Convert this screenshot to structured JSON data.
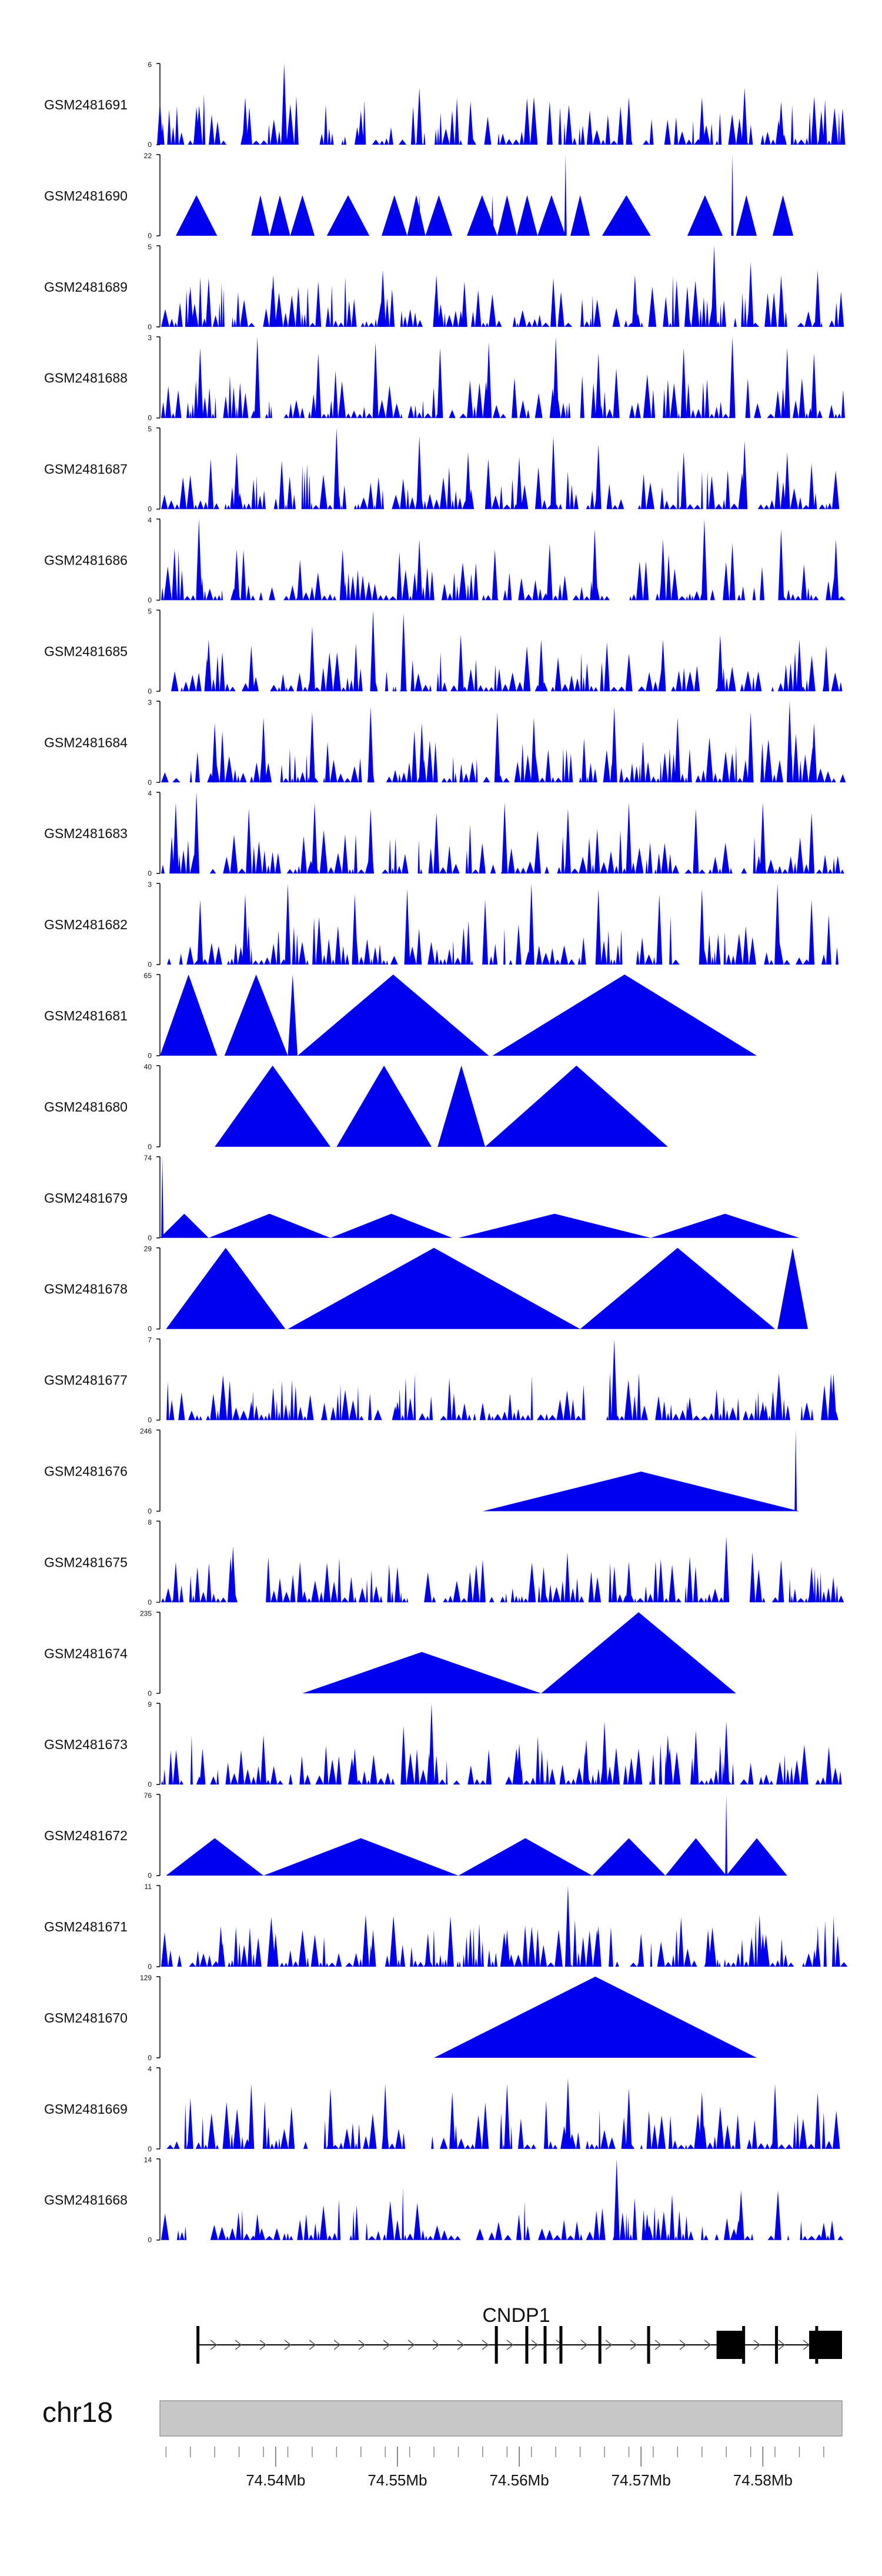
{
  "figure": {
    "chromosome": "chr18",
    "gene": "CNDP1",
    "colors": {
      "signal": "#0000ee",
      "gene": "#000000",
      "ideogram": "#c8c8c8",
      "axis": "#000000",
      "label": "#111111"
    }
  },
  "chart_data": {
    "type": "area",
    "title": "",
    "xlabel": "",
    "ylabel": "",
    "genome_range_mb": [
      74.5305,
      74.5865
    ],
    "x_ticks": [
      {
        "value": 74.54,
        "label": "74.54Mb"
      },
      {
        "value": 74.55,
        "label": "74.55Mb"
      },
      {
        "value": 74.56,
        "label": "74.56Mb"
      },
      {
        "value": 74.57,
        "label": "74.57Mb"
      },
      {
        "value": 74.58,
        "label": "74.58Mb"
      }
    ],
    "tracks": [
      {
        "name": "GSM2481691",
        "ymax": 6,
        "peaks": [
          [
            74.5305,
            3.2
          ],
          [
            74.5335,
            2.8
          ],
          [
            74.5375,
            3.5
          ],
          [
            74.5407,
            6
          ],
          [
            74.547,
            2.5
          ],
          [
            74.5518,
            4.2
          ],
          [
            74.556,
            3.2
          ],
          [
            74.5625,
            3.2
          ],
          [
            74.569,
            3.5
          ],
          [
            74.575,
            3.5
          ],
          [
            74.5785,
            4.2
          ],
          [
            74.5815,
            3.2
          ],
          [
            74.5848,
            2.5
          ]
        ]
      },
      {
        "name": "GSM2481690",
        "ymax": 22,
        "segments": [
          [
            74.5318,
            74.5352,
            11
          ],
          [
            74.538,
            74.5395,
            11
          ],
          [
            74.5395,
            74.5412,
            11
          ],
          [
            74.5412,
            74.5432,
            11
          ],
          [
            74.5442,
            74.5477,
            11
          ],
          [
            74.5487,
            74.5508,
            11
          ],
          [
            74.5508,
            74.5523,
            11
          ],
          [
            74.5523,
            74.5545,
            11
          ],
          [
            74.5557,
            74.5582,
            11
          ],
          [
            74.5582,
            74.5598,
            11
          ],
          [
            74.5598,
            74.5615,
            11
          ],
          [
            74.5615,
            74.5638,
            11
          ],
          [
            74.5642,
            74.5658,
            11
          ],
          [
            74.5668,
            74.5708,
            11
          ],
          [
            74.5738,
            74.5767,
            11
          ],
          [
            74.5778,
            74.5795,
            11
          ],
          [
            74.5808,
            74.5825,
            11
          ]
        ],
        "peaks": [
          [
            74.5638,
            22
          ],
          [
            74.5775,
            22
          ],
          [
            74.5518,
            11
          ],
          [
            74.5578,
            11
          ]
        ]
      },
      {
        "name": "GSM2481689",
        "ymax": 5,
        "peaks": [
          [
            74.533,
            2.5
          ],
          [
            74.5345,
            3.0
          ],
          [
            74.5398,
            3.2
          ],
          [
            74.5435,
            2.8
          ],
          [
            74.5488,
            3.5
          ],
          [
            74.5532,
            3.2
          ],
          [
            74.5555,
            2.8
          ],
          [
            74.5628,
            3.0
          ],
          [
            74.5695,
            3.2
          ],
          [
            74.5738,
            2.5
          ],
          [
            74.576,
            5
          ],
          [
            74.579,
            4.0
          ],
          [
            74.5815,
            3.2
          ],
          [
            74.5845,
            3.5
          ]
        ]
      },
      {
        "name": "GSM2481688",
        "ymax": 3,
        "peaks": [
          [
            74.5338,
            2.6
          ],
          [
            74.5385,
            3
          ],
          [
            74.5435,
            2.4
          ],
          [
            74.5482,
            2.8
          ],
          [
            74.5535,
            2.6
          ],
          [
            74.5575,
            2.8
          ],
          [
            74.563,
            3
          ],
          [
            74.5665,
            2.4
          ],
          [
            74.5735,
            2.6
          ],
          [
            74.5775,
            3
          ],
          [
            74.582,
            2.6
          ],
          [
            74.5842,
            2.4
          ]
        ]
      },
      {
        "name": "GSM2481687",
        "ymax": 5,
        "peaks": [
          [
            74.5368,
            3.5
          ],
          [
            74.5405,
            3.0
          ],
          [
            74.545,
            5
          ],
          [
            74.5518,
            4.5
          ],
          [
            74.5558,
            3.5
          ],
          [
            74.56,
            3.2
          ],
          [
            74.5628,
            4.5
          ],
          [
            74.5665,
            4.0
          ],
          [
            74.5735,
            3.5
          ],
          [
            74.5785,
            4.2
          ],
          [
            74.582,
            3.5
          ],
          [
            74.584,
            2.8
          ]
        ]
      },
      {
        "name": "GSM2481686",
        "ymax": 4,
        "peaks": [
          [
            74.5337,
            4
          ],
          [
            74.5368,
            2.5
          ],
          [
            74.542,
            2.0
          ],
          [
            74.5455,
            2.5
          ],
          [
            74.5518,
            3.0
          ],
          [
            74.558,
            2.5
          ],
          [
            74.5625,
            2.8
          ],
          [
            74.5662,
            3.5
          ],
          [
            74.5718,
            3.0
          ],
          [
            74.5752,
            4
          ],
          [
            74.5775,
            2.8
          ],
          [
            74.5815,
            3.5
          ],
          [
            74.586,
            3.0
          ]
        ]
      },
      {
        "name": "GSM2481685",
        "ymax": 5,
        "peaks": [
          [
            74.5345,
            3.2
          ],
          [
            74.538,
            2.8
          ],
          [
            74.543,
            4.0
          ],
          [
            74.548,
            5
          ],
          [
            74.5505,
            4.8
          ],
          [
            74.5552,
            3.5
          ],
          [
            74.5618,
            3.2
          ],
          [
            74.5672,
            3.0
          ],
          [
            74.5718,
            3.2
          ],
          [
            74.5765,
            3.5
          ],
          [
            74.583,
            3.2
          ],
          [
            74.5852,
            2.8
          ]
        ]
      },
      {
        "name": "GSM2481684",
        "ymax": 3,
        "peaks": [
          [
            74.535,
            2.2
          ],
          [
            74.539,
            2.4
          ],
          [
            74.543,
            2.6
          ],
          [
            74.5478,
            2.8
          ],
          [
            74.552,
            2.2
          ],
          [
            74.5582,
            2.6
          ],
          [
            74.5612,
            2.4
          ],
          [
            74.5678,
            2.8
          ],
          [
            74.573,
            2.4
          ],
          [
            74.579,
            2.6
          ],
          [
            74.5822,
            3
          ],
          [
            74.5842,
            2.2
          ]
        ]
      },
      {
        "name": "GSM2481683",
        "ymax": 4,
        "peaks": [
          [
            74.5318,
            3.5
          ],
          [
            74.5335,
            4
          ],
          [
            74.5378,
            3.2
          ],
          [
            74.5432,
            3.5
          ],
          [
            74.5478,
            3.2
          ],
          [
            74.5532,
            3.0
          ],
          [
            74.5588,
            3.5
          ],
          [
            74.564,
            3.2
          ],
          [
            74.569,
            3.5
          ],
          [
            74.5745,
            3.2
          ],
          [
            74.58,
            3.5
          ],
          [
            74.584,
            3.0
          ]
        ]
      },
      {
        "name": "GSM2481682",
        "ymax": 3,
        "peaks": [
          [
            74.5338,
            2.4
          ],
          [
            74.5375,
            2.6
          ],
          [
            74.541,
            3
          ],
          [
            74.5465,
            2.6
          ],
          [
            74.5508,
            2.8
          ],
          [
            74.5572,
            2.4
          ],
          [
            74.561,
            3
          ],
          [
            74.5665,
            2.8
          ],
          [
            74.5715,
            2.6
          ],
          [
            74.575,
            2.8
          ],
          [
            74.5812,
            3
          ],
          [
            74.584,
            2.4
          ]
        ]
      },
      {
        "name": "GSM2481681",
        "ymax": 65,
        "segments": [
          [
            74.5305,
            74.5352,
            65
          ],
          [
            74.5358,
            74.541,
            65
          ],
          [
            74.541,
            74.5418,
            65
          ],
          [
            74.5418,
            74.5575,
            65
          ],
          [
            74.5578,
            74.5795,
            65
          ]
        ]
      },
      {
        "name": "GSM2481680",
        "ymax": 40,
        "segments": [
          [
            74.535,
            74.5445,
            40
          ],
          [
            74.545,
            74.5528,
            40
          ],
          [
            74.5533,
            74.5572,
            40
          ],
          [
            74.5572,
            74.5722,
            40
          ]
        ]
      },
      {
        "name": "GSM2481679",
        "ymax": 74,
        "segments": [
          [
            74.5305,
            74.5345,
            22
          ],
          [
            74.5345,
            74.5445,
            22
          ],
          [
            74.5445,
            74.5545,
            22
          ],
          [
            74.555,
            74.5708,
            22
          ],
          [
            74.5708,
            74.583,
            22
          ]
        ],
        "peaks": [
          [
            74.5307,
            74
          ]
        ]
      },
      {
        "name": "GSM2481678",
        "ymax": 29,
        "segments": [
          [
            74.531,
            74.5408,
            29
          ],
          [
            74.541,
            74.565,
            29
          ],
          [
            74.565,
            74.581,
            29
          ],
          [
            74.5812,
            74.5837,
            29
          ]
        ]
      },
      {
        "name": "GSM2481677",
        "ymax": 7,
        "peaks": [
          [
            74.538,
            1.6
          ],
          [
            74.544,
            1.5
          ],
          [
            74.55,
            1.6
          ],
          [
            74.557,
            1.5
          ],
          [
            74.5678,
            7
          ],
          [
            74.574,
            2.0
          ],
          [
            74.58,
            1.6
          ],
          [
            74.5858,
            4.0
          ]
        ]
      },
      {
        "name": "GSM2481676",
        "ymax": 246,
        "segments": [
          [
            74.557,
            74.583,
            120
          ]
        ],
        "peaks": [
          [
            74.5827,
            246
          ]
        ]
      },
      {
        "name": "GSM2481675",
        "ymax": 8,
        "peaks": [
          [
            74.5318,
            4.0
          ],
          [
            74.5363,
            4.5
          ],
          [
            74.5365,
            5.5
          ],
          [
            74.542,
            4.0
          ],
          [
            74.55,
            3.5
          ],
          [
            74.557,
            4.2
          ],
          [
            74.562,
            3.5
          ],
          [
            74.569,
            4.0
          ],
          [
            74.574,
            4.5
          ],
          [
            74.577,
            6.5
          ],
          [
            74.5815,
            4.2
          ],
          [
            74.584,
            3.5
          ]
        ]
      },
      {
        "name": "GSM2481674",
        "ymax": 235,
        "segments": [
          [
            74.5422,
            74.5618,
            120
          ],
          [
            74.5618,
            74.5778,
            235
          ]
        ]
      },
      {
        "name": "GSM2481673",
        "ymax": 9,
        "peaks": [
          [
            74.534,
            4.0
          ],
          [
            74.539,
            5.5
          ],
          [
            74.5465,
            4.0
          ],
          [
            74.5505,
            6.5
          ],
          [
            74.5528,
            9
          ],
          [
            74.56,
            4.5
          ],
          [
            74.5655,
            5.0
          ],
          [
            74.567,
            7.0
          ],
          [
            74.5722,
            5.5
          ],
          [
            74.5745,
            6.0
          ],
          [
            74.577,
            7.0
          ]
        ]
      },
      {
        "name": "GSM2481672",
        "ymax": 76,
        "segments": [
          [
            74.531,
            74.539,
            35
          ],
          [
            74.539,
            74.555,
            35
          ],
          [
            74.555,
            74.566,
            35
          ],
          [
            74.566,
            74.572,
            35
          ],
          [
            74.572,
            74.577,
            35
          ],
          [
            74.577,
            74.582,
            35
          ]
        ],
        "peaks": [
          [
            74.577,
            76
          ]
        ]
      },
      {
        "name": "GSM2481671",
        "ymax": 11,
        "peaks": [
          [
            74.5355,
            5.5
          ],
          [
            74.54,
            4.5
          ],
          [
            74.548,
            5.0
          ],
          [
            74.5525,
            4.5
          ],
          [
            74.559,
            5.0
          ],
          [
            74.564,
            11
          ],
          [
            74.5665,
            5.5
          ],
          [
            74.57,
            4.5
          ],
          [
            74.5755,
            5.0
          ],
          [
            74.58,
            4.5
          ],
          [
            74.5845,
            4.0
          ]
        ]
      },
      {
        "name": "GSM2481670",
        "ymax": 129,
        "segments": [
          [
            74.553,
            74.5795,
            129
          ]
        ]
      },
      {
        "name": "GSM2481669",
        "ymax": 4,
        "peaks": [
          [
            74.533,
            2.5
          ],
          [
            74.538,
            3.2
          ],
          [
            74.5445,
            3.0
          ],
          [
            74.549,
            3.2
          ],
          [
            74.5545,
            2.8
          ],
          [
            74.559,
            3.2
          ],
          [
            74.564,
            3.5
          ],
          [
            74.569,
            3.0
          ],
          [
            74.575,
            2.8
          ],
          [
            74.581,
            3.2
          ],
          [
            74.5845,
            2.8
          ]
        ]
      },
      {
        "name": "GSM2481668",
        "ymax": 14,
        "peaks": [
          [
            74.5385,
            4.5
          ],
          [
            74.542,
            3.5
          ],
          [
            74.55,
            3.5
          ],
          [
            74.568,
            14
          ],
          [
            74.5705,
            4.5
          ],
          [
            74.578,
            3.5
          ],
          [
            74.585,
            3.0
          ]
        ]
      }
    ],
    "gene_model": {
      "name": "CNDP1",
      "tx_start": 74.5335,
      "tx_end": 74.5865,
      "strand": "+",
      "exons": [
        [
          74.5335,
          74.5337,
          "thin"
        ],
        [
          74.558,
          74.5582,
          "thin"
        ],
        [
          74.5605,
          74.5607,
          "thin"
        ],
        [
          74.562,
          74.5622,
          "thin"
        ],
        [
          74.5633,
          74.5635,
          "thin"
        ],
        [
          74.5665,
          74.5667,
          "thin"
        ],
        [
          74.5705,
          74.5707,
          "thin"
        ],
        [
          74.5762,
          74.5785,
          "thick"
        ],
        [
          74.5783,
          74.5785,
          "thin"
        ],
        [
          74.581,
          74.5812,
          "thin"
        ],
        [
          74.5838,
          74.5865,
          "thick"
        ],
        [
          74.5843,
          74.5845,
          "thin"
        ]
      ]
    }
  }
}
